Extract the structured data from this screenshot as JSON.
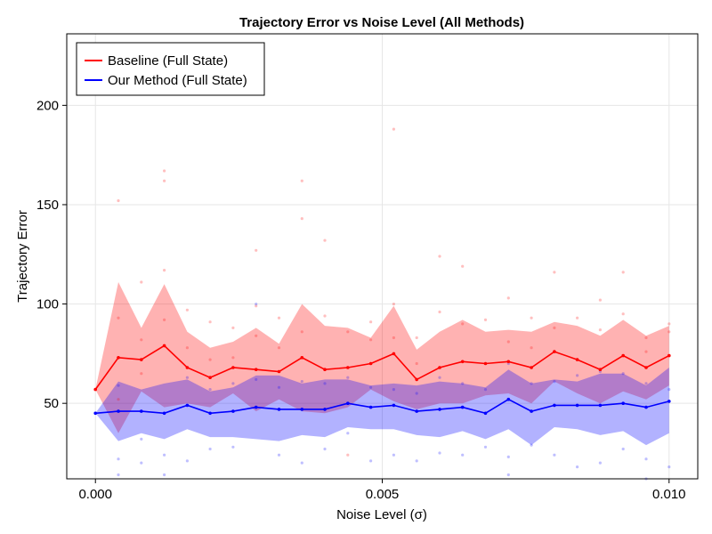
{
  "chart_data": {
    "type": "line",
    "title": "Trajectory Error vs Noise Level (All Methods)",
    "xlabel": "Noise Level (σ)",
    "ylabel": "Trajectory Error",
    "xlim": [
      -0.0005,
      0.0105
    ],
    "ylim": [
      12,
      236
    ],
    "xticks": [
      0.0,
      0.005,
      0.01
    ],
    "xtick_labels": [
      "0.000",
      "0.005",
      "0.010"
    ],
    "yticks": [
      50,
      100,
      150,
      200
    ],
    "ytick_labels": [
      "50",
      "100",
      "150",
      "200"
    ],
    "grid": true,
    "legend_position": "top-left",
    "x": [
      0.0,
      0.0004,
      0.0008,
      0.0012,
      0.0016,
      0.002,
      0.0024,
      0.0028,
      0.0032,
      0.0036,
      0.004,
      0.0044,
      0.0048,
      0.0052,
      0.0056,
      0.006,
      0.0064,
      0.0068,
      0.0072,
      0.0076,
      0.008,
      0.0084,
      0.0088,
      0.0092,
      0.0096,
      0.01
    ],
    "series": [
      {
        "name": "Baseline (Full State)",
        "color": "#ff0000",
        "band_color": "rgba(255,0,0,0.3)",
        "mean": [
          57,
          73,
          72,
          79,
          68,
          63,
          68,
          67,
          66,
          73,
          67,
          68,
          70,
          75,
          62,
          68,
          71,
          70,
          71,
          68,
          76,
          72,
          67,
          74,
          68,
          74
        ],
        "upper": [
          57,
          111,
          88,
          110,
          86,
          78,
          81,
          88,
          80,
          100,
          89,
          88,
          83,
          99,
          77,
          86,
          92,
          86,
          87,
          86,
          91,
          89,
          84,
          92,
          84,
          89
        ],
        "lower": [
          57,
          35,
          56,
          48,
          50,
          48,
          55,
          46,
          52,
          46,
          45,
          48,
          57,
          51,
          47,
          50,
          50,
          54,
          55,
          50,
          61,
          55,
          50,
          56,
          52,
          59
        ],
        "scatter": [
          [
            0.0004,
            152
          ],
          [
            0.0004,
            93
          ],
          [
            0.0004,
            52
          ],
          [
            0.0008,
            111
          ],
          [
            0.0008,
            82
          ],
          [
            0.0008,
            65
          ],
          [
            0.0012,
            167
          ],
          [
            0.0012,
            162
          ],
          [
            0.0012,
            117
          ],
          [
            0.0012,
            92
          ],
          [
            0.0016,
            97
          ],
          [
            0.0016,
            78
          ],
          [
            0.002,
            91
          ],
          [
            0.002,
            72
          ],
          [
            0.0024,
            88
          ],
          [
            0.0024,
            73
          ],
          [
            0.0028,
            127
          ],
          [
            0.0028,
            99
          ],
          [
            0.0028,
            84
          ],
          [
            0.0032,
            93
          ],
          [
            0.0032,
            78
          ],
          [
            0.0036,
            162
          ],
          [
            0.0036,
            143
          ],
          [
            0.0036,
            86
          ],
          [
            0.004,
            132
          ],
          [
            0.004,
            94
          ],
          [
            0.0044,
            86
          ],
          [
            0.0044,
            24
          ],
          [
            0.0048,
            91
          ],
          [
            0.0048,
            82
          ],
          [
            0.0052,
            188
          ],
          [
            0.0052,
            100
          ],
          [
            0.0052,
            83
          ],
          [
            0.0056,
            83
          ],
          [
            0.0056,
            70
          ],
          [
            0.006,
            124
          ],
          [
            0.006,
            96
          ],
          [
            0.0064,
            119
          ],
          [
            0.0064,
            90
          ],
          [
            0.0068,
            92
          ],
          [
            0.0072,
            103
          ],
          [
            0.0072,
            81
          ],
          [
            0.0076,
            93
          ],
          [
            0.0076,
            78
          ],
          [
            0.008,
            116
          ],
          [
            0.008,
            88
          ],
          [
            0.0084,
            93
          ],
          [
            0.0088,
            102
          ],
          [
            0.0088,
            87
          ],
          [
            0.0092,
            116
          ],
          [
            0.0092,
            95
          ],
          [
            0.0096,
            83
          ],
          [
            0.0096,
            76
          ],
          [
            0.01,
            90
          ],
          [
            0.01,
            86
          ]
        ]
      },
      {
        "name": "Our Method (Full State)",
        "color": "#0000ff",
        "band_color": "rgba(0,0,255,0.3)",
        "mean": [
          45,
          46,
          46,
          45,
          49,
          45,
          46,
          48,
          47,
          47,
          47,
          50,
          48,
          49,
          46,
          47,
          48,
          45,
          52,
          46,
          49,
          49,
          49,
          50,
          48,
          51
        ],
        "upper": [
          45,
          61,
          57,
          60,
          62,
          56,
          58,
          64,
          64,
          60,
          62,
          62,
          59,
          60,
          59,
          61,
          60,
          58,
          67,
          60,
          62,
          61,
          65,
          65,
          59,
          68
        ],
        "lower": [
          45,
          31,
          35,
          32,
          37,
          33,
          33,
          32,
          31,
          34,
          33,
          38,
          37,
          37,
          34,
          33,
          36,
          32,
          37,
          29,
          38,
          37,
          34,
          36,
          29,
          35
        ],
        "scatter": [
          [
            0.0004,
            14
          ],
          [
            0.0004,
            22
          ],
          [
            0.0004,
            59
          ],
          [
            0.0008,
            20
          ],
          [
            0.0008,
            32
          ],
          [
            0.0012,
            14
          ],
          [
            0.0012,
            24
          ],
          [
            0.0016,
            63
          ],
          [
            0.0016,
            21
          ],
          [
            0.002,
            27
          ],
          [
            0.002,
            57
          ],
          [
            0.0024,
            28
          ],
          [
            0.0024,
            60
          ],
          [
            0.0028,
            100
          ],
          [
            0.0028,
            62
          ],
          [
            0.0032,
            24
          ],
          [
            0.0032,
            58
          ],
          [
            0.0036,
            20
          ],
          [
            0.0036,
            61
          ],
          [
            0.004,
            27
          ],
          [
            0.004,
            60
          ],
          [
            0.0044,
            63
          ],
          [
            0.0044,
            35
          ],
          [
            0.0048,
            21
          ],
          [
            0.0048,
            58
          ],
          [
            0.0052,
            24
          ],
          [
            0.0052,
            57
          ],
          [
            0.0056,
            21
          ],
          [
            0.0056,
            55
          ],
          [
            0.006,
            25
          ],
          [
            0.006,
            63
          ],
          [
            0.0064,
            24
          ],
          [
            0.0064,
            60
          ],
          [
            0.0068,
            28
          ],
          [
            0.0068,
            57
          ],
          [
            0.0072,
            23
          ],
          [
            0.0072,
            14
          ],
          [
            0.0072,
            70
          ],
          [
            0.0076,
            29
          ],
          [
            0.0076,
            60
          ],
          [
            0.008,
            61
          ],
          [
            0.008,
            24
          ],
          [
            0.0084,
            18
          ],
          [
            0.0084,
            64
          ],
          [
            0.0088,
            20
          ],
          [
            0.0088,
            66
          ],
          [
            0.0092,
            27
          ],
          [
            0.0092,
            65
          ],
          [
            0.0096,
            12
          ],
          [
            0.0096,
            22
          ],
          [
            0.0096,
            60
          ],
          [
            0.01,
            18
          ],
          [
            0.01,
            57
          ]
        ]
      }
    ]
  }
}
